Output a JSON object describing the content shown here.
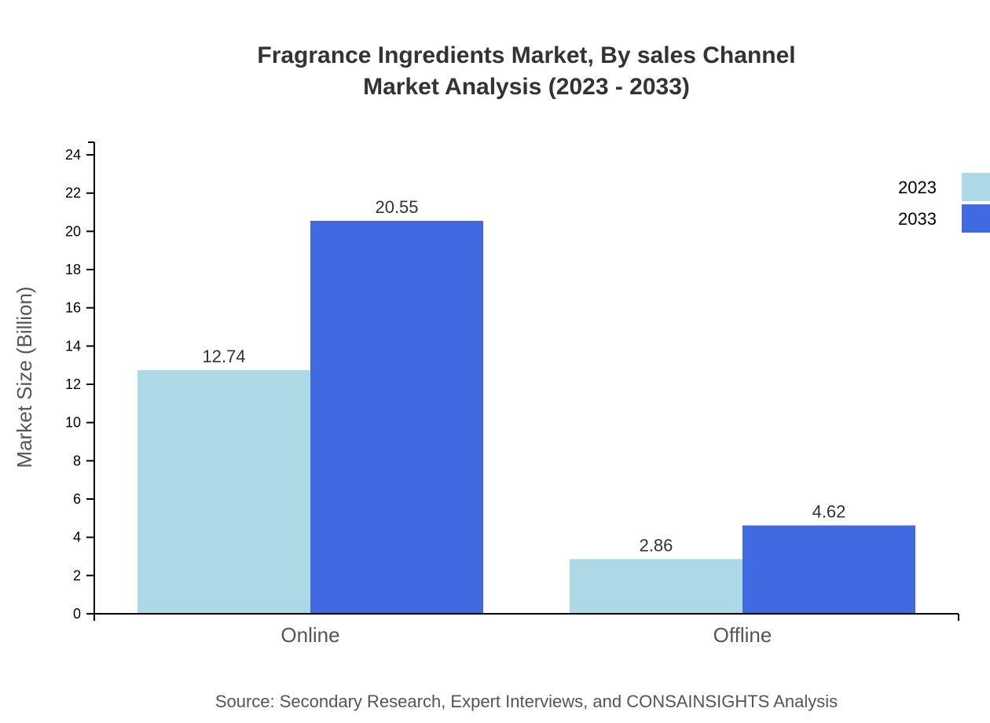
{
  "chart_data": {
    "type": "bar",
    "title_lines": [
      "Fragrance Ingredients Market, By sales Channel",
      "Market Analysis (2023 - 2033)"
    ],
    "xlabel": "",
    "ylabel": "Market Size (Billion)",
    "categories": [
      "Online",
      "Offline"
    ],
    "series": [
      {
        "name": "2023",
        "values": [
          12.74,
          2.86
        ],
        "color": "#ADD8E6"
      },
      {
        "name": "2033",
        "values": [
          20.55,
          4.62
        ],
        "color": "#4169E1"
      }
    ],
    "ylim": [
      0,
      24.66
    ],
    "yticks": [
      0,
      2,
      4,
      6,
      8,
      10,
      12,
      14,
      16,
      18,
      20,
      22,
      24
    ],
    "grid": false,
    "legend_position": "top-right",
    "source": "Source: Secondary Research, Expert Interviews, and CONSAINSIGHTS Analysis"
  }
}
